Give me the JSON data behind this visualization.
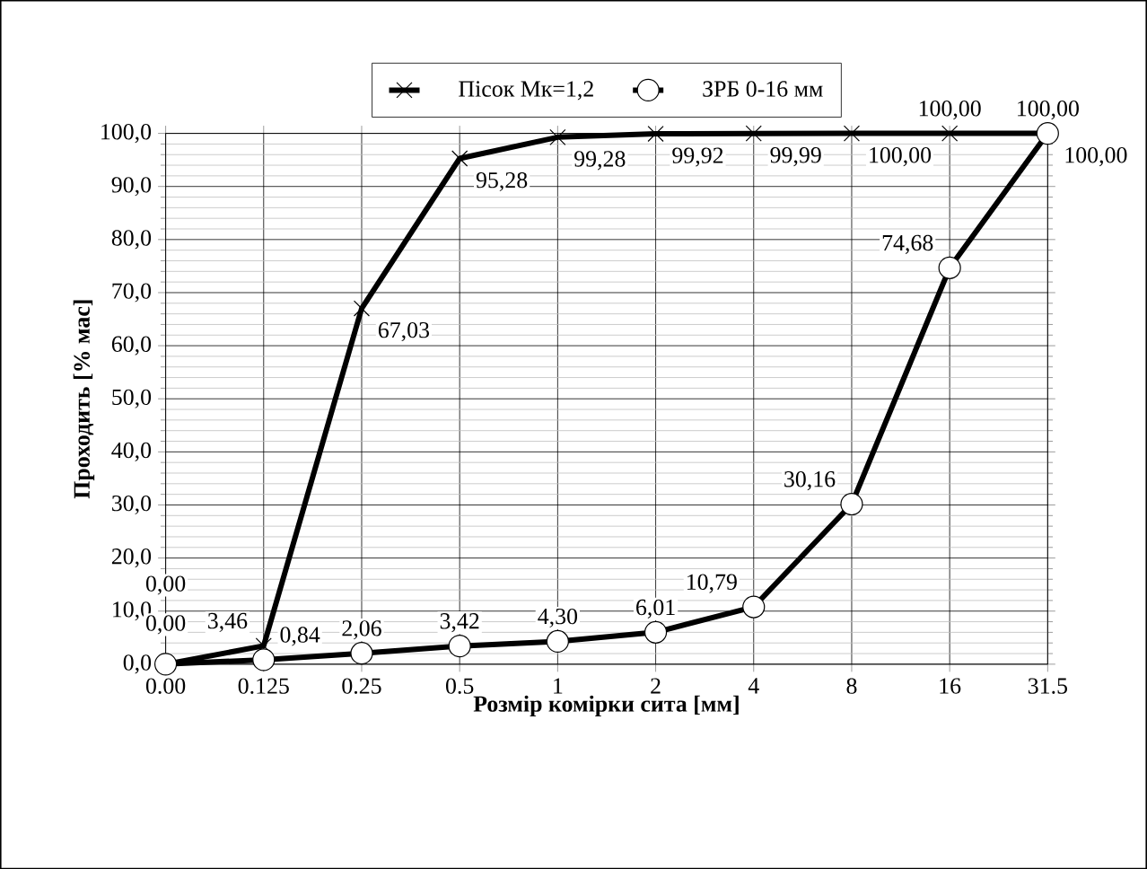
{
  "chart_data": {
    "type": "line",
    "xlabel": "Розмір комірки сита [мм]",
    "ylabel": "Проходить [% мас]",
    "categories": [
      "0.00",
      "0.125",
      "0.25",
      "0.5",
      "1",
      "2",
      "4",
      "8",
      "16",
      "31.5"
    ],
    "ylim": [
      0,
      100
    ],
    "yticks": [
      {
        "value": 0,
        "label": "0,0"
      },
      {
        "value": 10,
        "label": "10,0"
      },
      {
        "value": 20,
        "label": "20,0"
      },
      {
        "value": 30,
        "label": "30,0"
      },
      {
        "value": 40,
        "label": "40,0"
      },
      {
        "value": 50,
        "label": "50,0"
      },
      {
        "value": 60,
        "label": "60,0"
      },
      {
        "value": 70,
        "label": "70,0"
      },
      {
        "value": 80,
        "label": "80,0"
      },
      {
        "value": 90,
        "label": "90,0"
      },
      {
        "value": 100,
        "label": "100,0"
      }
    ],
    "grid": true,
    "legend": "top",
    "line_style": "solid",
    "series": [
      {
        "name": "Пісок Мк=1,2",
        "color": "#000000",
        "marker": "cross",
        "values": [
          0.0,
          3.46,
          67.03,
          95.28,
          99.28,
          99.92,
          99.99,
          100.0,
          100.0,
          100.0
        ],
        "value_labels": [
          "0,00",
          "3,46",
          "67,03",
          "95,28",
          "99,28",
          "99,92",
          "99,99",
          "100,00",
          "100,00",
          "100,00"
        ]
      },
      {
        "name": "ЗРБ 0-16 мм",
        "color": "#000000",
        "marker": "circle",
        "values": [
          0.0,
          0.84,
          2.06,
          3.42,
          4.3,
          6.01,
          10.79,
          30.16,
          74.68,
          100.0
        ],
        "value_labels": [
          "0,00",
          "0,84",
          "2,06",
          "3,42",
          "4,30",
          "6,01",
          "10,79",
          "30,16",
          "74,68",
          "100,00"
        ]
      }
    ]
  }
}
